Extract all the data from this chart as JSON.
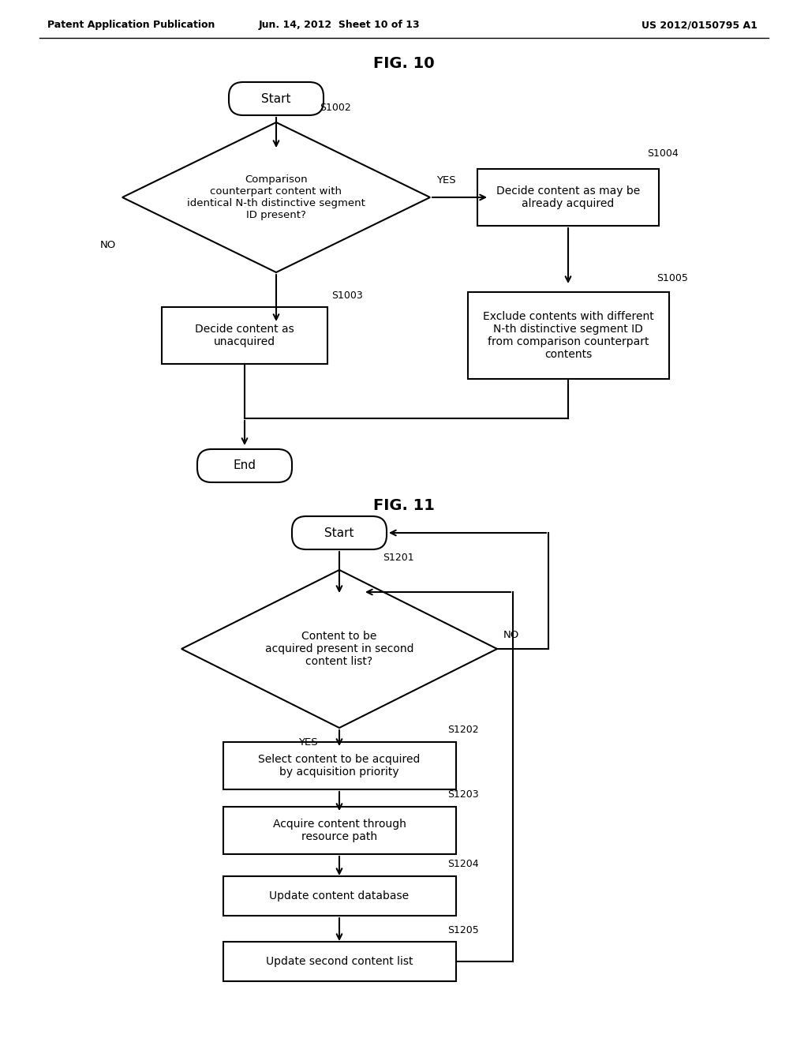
{
  "header_left": "Patent Application Publication",
  "header_mid": "Jun. 14, 2012  Sheet 10 of 13",
  "header_right": "US 2012/0150795 A1",
  "fig10_title": "FIG. 10",
  "fig11_title": "FIG. 11",
  "background": "#ffffff",
  "fig10": {
    "start_label": "Start",
    "diamond_label": "Comparison\ncounterpart content with\nidentical N-th distinctive segment\nID present?",
    "diamond_step": "S1002",
    "yes_label": "YES",
    "no_label": "NO",
    "box1_label": "Decide content as may be\nalready acquired",
    "box1_step": "S1004",
    "box2_label": "Exclude contents with different\nN-th distinctive segment ID\nfrom comparison counterpart\ncontents",
    "box2_step": "S1005",
    "box3_label": "Decide content as\nunacquired",
    "box3_step": "S1003",
    "end_label": "End"
  },
  "fig11": {
    "start_label": "Start",
    "diamond_label": "Content to be\nacquired present in second\ncontent list?",
    "diamond_step": "S1201",
    "yes_label": "YES",
    "no_label": "NO",
    "box1_label": "Select content to be acquired\nby acquisition priority",
    "box1_step": "S1202",
    "box2_label": "Acquire content through\nresource path",
    "box2_step": "S1203",
    "box3_label": "Update content database",
    "box3_step": "S1204",
    "box4_label": "Update second content list",
    "box4_step": "S1205"
  }
}
